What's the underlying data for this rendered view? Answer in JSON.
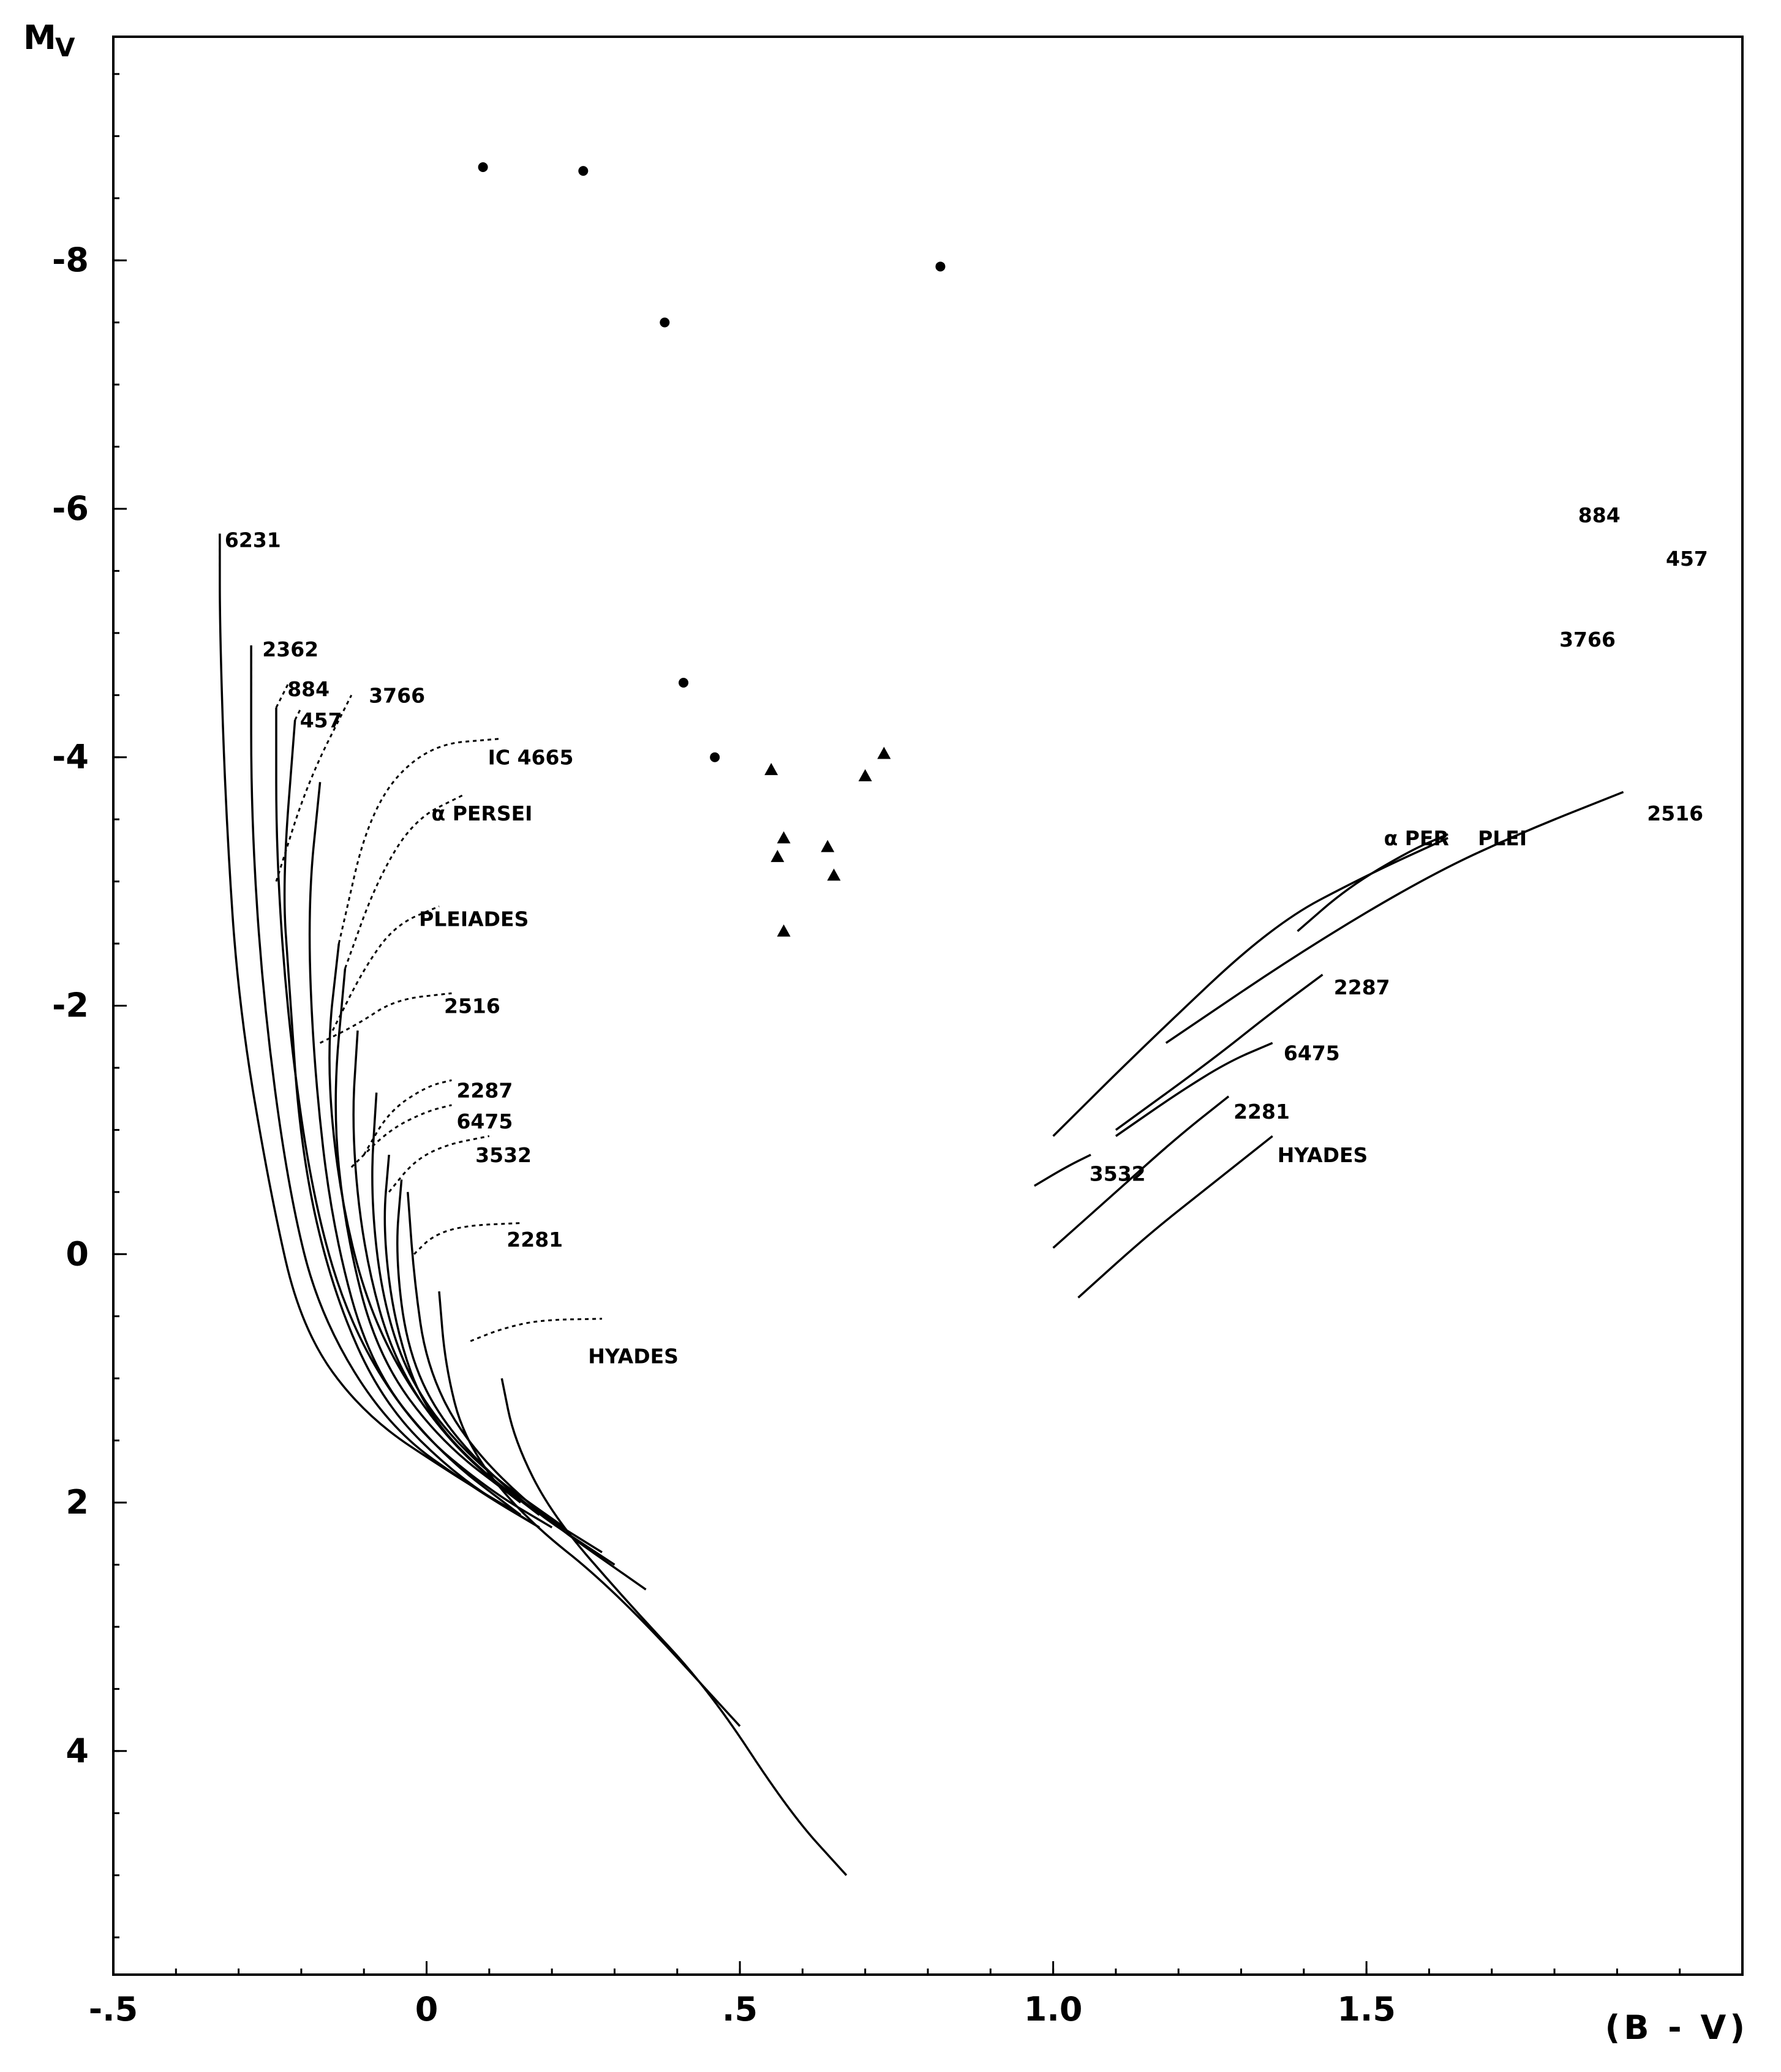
{
  "chart_data": {
    "type": "line",
    "title": "",
    "xlabel": "(B - V)",
    "ylabel": "M",
    "ylabel_subscript": "V",
    "xlim": [
      -0.5,
      2.1
    ],
    "ylim": [
      5.8,
      -9.8
    ],
    "y_inverted": true,
    "grid": false,
    "x_ticks": [
      {
        "value": -0.5,
        "label": "-.5"
      },
      {
        "value": 0.0,
        "label": "0"
      },
      {
        "value": 0.5,
        "label": ".5"
      },
      {
        "value": 1.0,
        "label": "1.0"
      },
      {
        "value": 1.5,
        "label": "1.5"
      }
    ],
    "y_ticks": [
      {
        "value": -8,
        "label": "-8"
      },
      {
        "value": -6,
        "label": "-6"
      },
      {
        "value": -4,
        "label": "-4"
      },
      {
        "value": -2,
        "label": "-2"
      },
      {
        "value": 0,
        "label": "0"
      },
      {
        "value": 2,
        "label": "2"
      },
      {
        "value": 4,
        "label": "4"
      }
    ],
    "main_sequence_series": [
      {
        "name": "6231",
        "label_at": [
          -0.33,
          -5.75
        ],
        "points": [
          [
            -0.33,
            -5.8
          ],
          [
            -0.33,
            -5.0
          ],
          [
            -0.32,
            -3.5
          ],
          [
            -0.3,
            -2.0
          ],
          [
            -0.25,
            -0.5
          ],
          [
            -0.2,
            0.6
          ],
          [
            -0.1,
            1.3
          ],
          [
            0.05,
            1.8
          ],
          [
            0.15,
            2.1
          ]
        ]
      },
      {
        "name": "2362",
        "label_at": [
          -0.27,
          -4.87
        ],
        "points": [
          [
            -0.28,
            -4.9
          ],
          [
            -0.28,
            -3.5
          ],
          [
            -0.26,
            -2.0
          ],
          [
            -0.22,
            -0.5
          ],
          [
            -0.17,
            0.5
          ],
          [
            -0.06,
            1.4
          ],
          [
            0.08,
            1.9
          ],
          [
            0.18,
            2.2
          ]
        ]
      },
      {
        "name": "884",
        "label_at": [
          -0.23,
          -4.55
        ],
        "points": [
          [
            -0.24,
            -4.4
          ],
          [
            -0.24,
            -3.2
          ],
          [
            -0.22,
            -1.8
          ],
          [
            -0.18,
            -0.4
          ],
          [
            -0.12,
            0.6
          ],
          [
            -0.02,
            1.4
          ],
          [
            0.1,
            1.9
          ],
          [
            0.2,
            2.2
          ]
        ]
      },
      {
        "name": "457",
        "label_at": [
          -0.21,
          -4.3
        ],
        "points": [
          [
            -0.21,
            -4.3
          ],
          [
            -0.23,
            -3.0
          ],
          [
            -0.22,
            -2.2
          ],
          [
            -0.2,
            -0.8
          ],
          [
            -0.15,
            0.3
          ],
          [
            -0.07,
            1.2
          ],
          [
            0.05,
            1.8
          ],
          [
            0.18,
            2.2
          ]
        ]
      },
      {
        "name": "3766",
        "label_at": [
          -0.1,
          -4.5
        ],
        "points": [
          [
            -0.17,
            -3.8
          ],
          [
            -0.19,
            -2.8
          ],
          [
            -0.18,
            -1.5
          ],
          [
            -0.15,
            -0.2
          ],
          [
            -0.09,
            0.9
          ],
          [
            0.02,
            1.6
          ],
          [
            0.15,
            2.1
          ]
        ]
      },
      {
        "name": "IC 4665",
        "label_at": [
          0.09,
          -4.0
        ],
        "points": [
          [
            -0.14,
            -2.5
          ],
          [
            -0.16,
            -1.6
          ],
          [
            -0.14,
            -0.5
          ],
          [
            -0.09,
            0.5
          ],
          [
            0.0,
            1.3
          ],
          [
            0.12,
            1.9
          ],
          [
            0.22,
            2.2
          ]
        ]
      },
      {
        "name": "α PERSEI",
        "label_at": [
          0.0,
          -3.55
        ],
        "points": [
          [
            -0.13,
            -2.3
          ],
          [
            -0.15,
            -1.2
          ],
          [
            -0.13,
            -0.2
          ],
          [
            -0.08,
            0.8
          ],
          [
            0.02,
            1.5
          ],
          [
            0.15,
            2.0
          ]
        ]
      },
      {
        "name": "PLEIADES",
        "label_at": [
          -0.02,
          -2.7
        ],
        "points": [
          [
            -0.11,
            -1.8
          ],
          [
            -0.12,
            -1.0
          ],
          [
            -0.1,
            0.0
          ],
          [
            -0.05,
            0.9
          ],
          [
            0.05,
            1.6
          ],
          [
            0.18,
            2.1
          ]
        ]
      },
      {
        "name": "2516",
        "label_at": [
          0.02,
          -2.0
        ],
        "points": [
          [
            -0.08,
            -1.3
          ],
          [
            -0.09,
            -0.5
          ],
          [
            -0.07,
            0.4
          ],
          [
            -0.02,
            1.1
          ],
          [
            0.08,
            1.7
          ],
          [
            0.22,
            2.2
          ]
        ]
      },
      {
        "name": "2287",
        "label_at": [
          0.04,
          -1.32
        ],
        "points": [
          [
            -0.06,
            -0.8
          ],
          [
            -0.07,
            -0.2
          ],
          [
            -0.05,
            0.6
          ],
          [
            0.0,
            1.3
          ],
          [
            0.12,
            1.9
          ],
          [
            0.28,
            2.4
          ]
        ]
      },
      {
        "name": "6475",
        "label_at": [
          0.04,
          -1.07
        ],
        "points": [
          [
            -0.04,
            -0.6
          ],
          [
            -0.05,
            0.0
          ],
          [
            -0.03,
            0.8
          ],
          [
            0.03,
            1.4
          ],
          [
            0.15,
            2.0
          ],
          [
            0.3,
            2.5
          ]
        ]
      },
      {
        "name": "3532",
        "label_at": [
          0.07,
          -0.8
        ],
        "points": [
          [
            -0.03,
            -0.5
          ],
          [
            -0.02,
            0.2
          ],
          [
            0.0,
            0.9
          ],
          [
            0.06,
            1.5
          ],
          [
            0.18,
            2.1
          ],
          [
            0.35,
            2.7
          ]
        ]
      },
      {
        "name": "2281",
        "label_at": [
          0.12,
          -0.12
        ],
        "points": [
          [
            0.02,
            0.3
          ],
          [
            0.03,
            0.9
          ],
          [
            0.06,
            1.5
          ],
          [
            0.15,
            2.1
          ],
          [
            0.3,
            2.7
          ],
          [
            0.5,
            3.8
          ]
        ]
      },
      {
        "name": "HYADES",
        "label_at": [
          0.25,
          0.82
        ],
        "points": [
          [
            0.12,
            1.0
          ],
          [
            0.14,
            1.5
          ],
          [
            0.2,
            2.1
          ],
          [
            0.32,
            2.8
          ],
          [
            0.45,
            3.5
          ],
          [
            0.58,
            4.5
          ],
          [
            0.67,
            5.0
          ]
        ]
      }
    ],
    "turnoff_series": [
      {
        "name": "6231",
        "points": [
          [
            -0.33,
            -5.8
          ],
          [
            -0.33,
            -5.5
          ]
        ]
      },
      {
        "name": "2362",
        "points": [
          [
            -0.28,
            -4.9
          ],
          [
            -0.28,
            -4.5
          ]
        ]
      },
      {
        "name": "884",
        "points": [
          [
            -0.24,
            -4.4
          ],
          [
            -0.22,
            -4.6
          ]
        ]
      },
      {
        "name": "457",
        "points": [
          [
            -0.21,
            -4.3
          ],
          [
            -0.2,
            -4.4
          ]
        ]
      },
      {
        "name": "3766",
        "points": [
          [
            -0.24,
            -3.0
          ],
          [
            -0.19,
            -3.8
          ],
          [
            -0.12,
            -4.5
          ]
        ]
      },
      {
        "name": "IC 4665",
        "points": [
          [
            -0.14,
            -2.5
          ],
          [
            -0.09,
            -3.6
          ],
          [
            0.0,
            -4.1
          ],
          [
            0.12,
            -4.15
          ]
        ]
      },
      {
        "name": "α PERSEI",
        "points": [
          [
            -0.13,
            -2.3
          ],
          [
            -0.08,
            -3.0
          ],
          [
            -0.02,
            -3.5
          ],
          [
            0.06,
            -3.7
          ]
        ]
      },
      {
        "name": "PLEIADES",
        "points": [
          [
            -0.15,
            -1.8
          ],
          [
            -0.1,
            -2.3
          ],
          [
            -0.05,
            -2.65
          ],
          [
            0.02,
            -2.8
          ]
        ]
      },
      {
        "name": "2516",
        "points": [
          [
            -0.17,
            -1.7
          ],
          [
            -0.11,
            -1.85
          ],
          [
            -0.05,
            -2.05
          ],
          [
            0.04,
            -2.1
          ]
        ]
      },
      {
        "name": "2287",
        "points": [
          [
            -0.1,
            -0.8
          ],
          [
            -0.06,
            -1.15
          ],
          [
            0.0,
            -1.35
          ],
          [
            0.04,
            -1.4
          ]
        ]
      },
      {
        "name": "6475",
        "points": [
          [
            -0.12,
            -0.7
          ],
          [
            -0.06,
            -1.0
          ],
          [
            0.0,
            -1.15
          ],
          [
            0.04,
            -1.2
          ]
        ]
      },
      {
        "name": "3532",
        "points": [
          [
            -0.06,
            -0.5
          ],
          [
            -0.02,
            -0.75
          ],
          [
            0.03,
            -0.88
          ],
          [
            0.1,
            -0.95
          ]
        ]
      },
      {
        "name": "2281",
        "points": [
          [
            -0.02,
            0.0
          ],
          [
            0.01,
            -0.15
          ],
          [
            0.06,
            -0.23
          ],
          [
            0.15,
            -0.25
          ]
        ]
      },
      {
        "name": "HYADES",
        "points": [
          [
            0.07,
            0.7
          ],
          [
            0.12,
            0.6
          ],
          [
            0.18,
            0.53
          ],
          [
            0.28,
            0.52
          ]
        ]
      }
    ],
    "giant_series": [
      {
        "name": "PLEI",
        "label_at": [
          1.67,
          -3.35
        ],
        "points": [
          [
            1.0,
            -0.95
          ],
          [
            1.15,
            -1.7
          ],
          [
            1.35,
            -2.65
          ],
          [
            1.5,
            -3.05
          ],
          [
            1.63,
            -3.35
          ]
        ]
      },
      {
        "name": "2516",
        "label_at": [
          1.94,
          -3.55
        ],
        "points": [
          [
            1.18,
            -1.7
          ],
          [
            1.4,
            -2.45
          ],
          [
            1.6,
            -3.05
          ],
          [
            1.75,
            -3.4
          ],
          [
            1.91,
            -3.72
          ]
        ]
      },
      {
        "name": "α PER",
        "label_at": [
          1.52,
          -3.35
        ],
        "points": [
          [
            1.39,
            -2.6
          ],
          [
            1.47,
            -2.95
          ],
          [
            1.57,
            -3.25
          ],
          [
            1.63,
            -3.38
          ]
        ]
      },
      {
        "name": "2287",
        "label_at": [
          1.44,
          -2.15
        ],
        "points": [
          [
            1.1,
            -1.0
          ],
          [
            1.25,
            -1.55
          ],
          [
            1.35,
            -1.95
          ],
          [
            1.43,
            -2.25
          ]
        ]
      },
      {
        "name": "6475",
        "label_at": [
          1.36,
          -1.62
        ],
        "points": [
          [
            1.1,
            -0.95
          ],
          [
            1.2,
            -1.3
          ],
          [
            1.28,
            -1.55
          ],
          [
            1.35,
            -1.7
          ]
        ]
      },
      {
        "name": "2281",
        "label_at": [
          1.28,
          -1.15
        ],
        "points": [
          [
            1.0,
            -0.05
          ],
          [
            1.1,
            -0.5
          ],
          [
            1.2,
            -0.95
          ],
          [
            1.28,
            -1.27
          ]
        ]
      },
      {
        "name": "3532",
        "label_at": [
          1.05,
          -0.65
        ],
        "points": [
          [
            0.97,
            -0.55
          ],
          [
            1.02,
            -0.7
          ],
          [
            1.06,
            -0.8
          ]
        ]
      },
      {
        "name": "HYADES",
        "label_at": [
          1.35,
          -0.8
        ],
        "points": [
          [
            1.04,
            0.35
          ],
          [
            1.15,
            -0.15
          ],
          [
            1.25,
            -0.55
          ],
          [
            1.35,
            -0.95
          ]
        ]
      }
    ],
    "giant_region_labels": [
      {
        "name": "884",
        "at": [
          1.83,
          -5.95
        ]
      },
      {
        "name": "457",
        "at": [
          1.97,
          -5.6
        ]
      },
      {
        "name": "3766",
        "at": [
          1.8,
          -4.95
        ]
      }
    ],
    "scatter_circles": [
      {
        "x": 0.09,
        "y": -8.75
      },
      {
        "x": 0.25,
        "y": -8.72
      },
      {
        "x": 0.38,
        "y": -7.5
      },
      {
        "x": 0.82,
        "y": -7.95
      },
      {
        "x": 0.41,
        "y": -4.6
      },
      {
        "x": 0.46,
        "y": -4.0
      }
    ],
    "scatter_triangles": [
      {
        "x": 0.55,
        "y": -3.9
      },
      {
        "x": 0.73,
        "y": -4.03
      },
      {
        "x": 0.7,
        "y": -3.85
      },
      {
        "x": 0.57,
        "y": -3.35
      },
      {
        "x": 0.64,
        "y": -3.28
      },
      {
        "x": 0.56,
        "y": -3.2
      },
      {
        "x": 0.65,
        "y": -3.05
      },
      {
        "x": 0.57,
        "y": -2.6
      }
    ]
  }
}
